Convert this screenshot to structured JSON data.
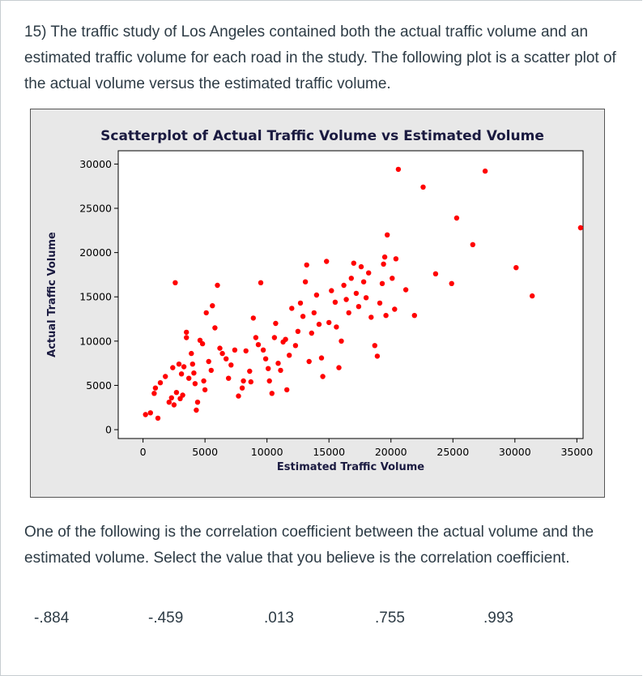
{
  "question": {
    "text": "15) The traffic study of Los Angeles contained both the actual traffic volume and an estimated traffic volume for each road in the study.  The following plot is a scatter plot of the actual volume versus the estimated traffic volume.",
    "prompt": "One of the following is the correlation coefficient between the actual volume and the estimated volume. Select the value that you believe is the correlation coefficient."
  },
  "options": [
    "-.884",
    "-.459",
    ".013",
    ".755",
    ".993"
  ],
  "colors": {
    "point": "#ff0000",
    "chart_bg": "#e8e8e8",
    "plot_bg": "#ffffff",
    "title": "#1a1a40"
  },
  "chart_data": {
    "type": "scatter",
    "title": "Scatterplot of Actual Traffic Volume vs Estimated Volume",
    "xlabel": "Estimated Traffic Volume",
    "ylabel": "Actual Traffic Volume",
    "xlim": [
      -2000,
      35500
    ],
    "ylim": [
      -1000,
      31500
    ],
    "xticks": [
      0,
      5000,
      10000,
      15000,
      20000,
      25000,
      30000,
      35000
    ],
    "yticks": [
      0,
      5000,
      10000,
      15000,
      20000,
      25000,
      30000
    ],
    "grid": false,
    "legend": "none",
    "points": [
      [
        200,
        1700
      ],
      [
        600,
        1900
      ],
      [
        1200,
        1300
      ],
      [
        900,
        4100
      ],
      [
        1000,
        4700
      ],
      [
        1400,
        5300
      ],
      [
        1800,
        6000
      ],
      [
        2100,
        3100
      ],
      [
        2300,
        3600
      ],
      [
        2500,
        2800
      ],
      [
        2700,
        4200
      ],
      [
        2400,
        7000
      ],
      [
        2900,
        7400
      ],
      [
        3000,
        3500
      ],
      [
        3200,
        3900
      ],
      [
        3100,
        6300
      ],
      [
        3300,
        7100
      ],
      [
        2600,
        16600
      ],
      [
        3500,
        10400
      ],
      [
        3500,
        11000
      ],
      [
        3700,
        5800
      ],
      [
        3900,
        8600
      ],
      [
        4000,
        7400
      ],
      [
        4100,
        6400
      ],
      [
        4200,
        5200
      ],
      [
        4400,
        3100
      ],
      [
        4300,
        2200
      ],
      [
        4600,
        10100
      ],
      [
        4800,
        9700
      ],
      [
        4900,
        5500
      ],
      [
        5000,
        4500
      ],
      [
        5100,
        13200
      ],
      [
        5300,
        7700
      ],
      [
        5500,
        6700
      ],
      [
        5600,
        14000
      ],
      [
        5800,
        11500
      ],
      [
        6000,
        16300
      ],
      [
        6200,
        9200
      ],
      [
        6400,
        8600
      ],
      [
        6700,
        8000
      ],
      [
        6900,
        5800
      ],
      [
        7100,
        7300
      ],
      [
        7400,
        9000
      ],
      [
        7700,
        3800
      ],
      [
        8000,
        4700
      ],
      [
        8100,
        5500
      ],
      [
        8300,
        8900
      ],
      [
        8600,
        6600
      ],
      [
        8700,
        5400
      ],
      [
        8900,
        12600
      ],
      [
        9100,
        10400
      ],
      [
        9300,
        9600
      ],
      [
        9500,
        16600
      ],
      [
        9700,
        9000
      ],
      [
        9900,
        8000
      ],
      [
        10100,
        6900
      ],
      [
        10200,
        5500
      ],
      [
        10400,
        4100
      ],
      [
        10600,
        10400
      ],
      [
        10700,
        12000
      ],
      [
        10900,
        7500
      ],
      [
        11100,
        6700
      ],
      [
        11300,
        9900
      ],
      [
        11500,
        10200
      ],
      [
        11600,
        4500
      ],
      [
        11800,
        8400
      ],
      [
        12000,
        13700
      ],
      [
        12300,
        9500
      ],
      [
        12500,
        11100
      ],
      [
        12700,
        14300
      ],
      [
        12900,
        12800
      ],
      [
        13100,
        16700
      ],
      [
        13200,
        18600
      ],
      [
        13400,
        7700
      ],
      [
        13600,
        10900
      ],
      [
        13800,
        13200
      ],
      [
        14000,
        15200
      ],
      [
        14200,
        11900
      ],
      [
        14400,
        8100
      ],
      [
        14500,
        6000
      ],
      [
        14800,
        19000
      ],
      [
        15000,
        12100
      ],
      [
        15200,
        15700
      ],
      [
        15500,
        14400
      ],
      [
        15600,
        11600
      ],
      [
        15800,
        7000
      ],
      [
        16000,
        10000
      ],
      [
        16200,
        16300
      ],
      [
        16400,
        14700
      ],
      [
        16600,
        13200
      ],
      [
        16800,
        17100
      ],
      [
        17000,
        18800
      ],
      [
        17200,
        15400
      ],
      [
        17400,
        13900
      ],
      [
        17600,
        18400
      ],
      [
        17800,
        16700
      ],
      [
        18000,
        14900
      ],
      [
        18200,
        17700
      ],
      [
        18400,
        12700
      ],
      [
        18700,
        9500
      ],
      [
        18900,
        8300
      ],
      [
        19100,
        14300
      ],
      [
        19300,
        16500
      ],
      [
        19400,
        18700
      ],
      [
        19600,
        12900
      ],
      [
        19700,
        22000
      ],
      [
        19500,
        19500
      ],
      [
        20100,
        17100
      ],
      [
        20300,
        13600
      ],
      [
        20400,
        19300
      ],
      [
        20600,
        29400
      ],
      [
        21200,
        15800
      ],
      [
        21900,
        12900
      ],
      [
        22600,
        27400
      ],
      [
        23600,
        17600
      ],
      [
        24900,
        16500
      ],
      [
        25300,
        23900
      ],
      [
        26600,
        20900
      ],
      [
        27600,
        29200
      ],
      [
        30100,
        18300
      ],
      [
        31400,
        15100
      ],
      [
        35300,
        22800
      ]
    ]
  }
}
